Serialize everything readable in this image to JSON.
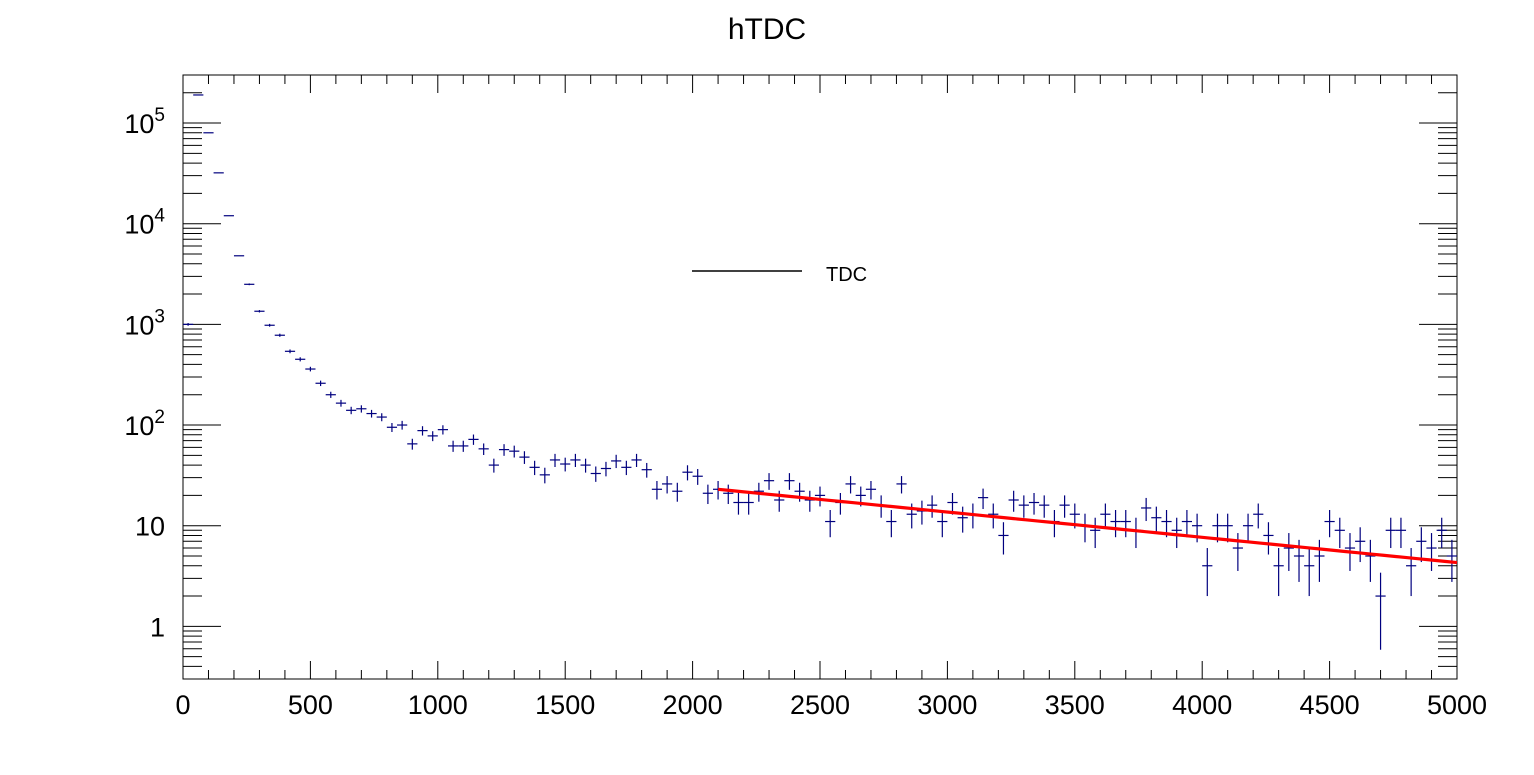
{
  "chart_data": {
    "type": "scatter",
    "title": "hTDC",
    "xlabel": "",
    "ylabel": "",
    "xlim": [
      0,
      5000
    ],
    "ylim": [
      0.3,
      300000
    ],
    "yscale": "log",
    "grid": false,
    "legend": {
      "position": "upper-center",
      "entries": [
        {
          "label": "TDC",
          "color": "#000000"
        }
      ]
    },
    "x_ticks": [
      "0",
      "500",
      "1000",
      "1500",
      "2000",
      "2500",
      "3000",
      "3500",
      "4000",
      "4500",
      "5000"
    ],
    "y_ticks": [
      {
        "value": 1,
        "label": "1"
      },
      {
        "value": 10,
        "label": "10"
      },
      {
        "value": 100,
        "label": "10",
        "exp": "2"
      },
      {
        "value": 1000,
        "label": "10",
        "exp": "3"
      },
      {
        "value": 10000,
        "label": "10",
        "exp": "4"
      },
      {
        "value": 100000,
        "label": "10",
        "exp": "5"
      }
    ],
    "series": [
      {
        "kind": "histogram-points",
        "color": "#00007f",
        "bin_width": 40,
        "x_centers": [
          20,
          60,
          100,
          140,
          180,
          220,
          260,
          300,
          340,
          380,
          420,
          460,
          500,
          540,
          580,
          620,
          660,
          700,
          740,
          780,
          820,
          860,
          900,
          940,
          980,
          1020,
          1060,
          1100,
          1140,
          1180,
          1220,
          1260,
          1300,
          1340,
          1380,
          1420,
          1460,
          1500,
          1540,
          1580,
          1620,
          1660,
          1700,
          1740,
          1780,
          1820,
          1860,
          1900,
          1940,
          1980,
          2020,
          2060,
          2100,
          2140,
          2180,
          2220,
          2260,
          2300,
          2340,
          2380,
          2420,
          2460,
          2500,
          2540,
          2580,
          2620,
          2660,
          2700,
          2740,
          2780,
          2820,
          2860,
          2900,
          2940,
          2980,
          3020,
          3060,
          3100,
          3140,
          3180,
          3220,
          3260,
          3300,
          3340,
          3380,
          3420,
          3460,
          3500,
          3540,
          3580,
          3620,
          3660,
          3700,
          3740,
          3780,
          3820,
          3860,
          3900,
          3940,
          3980,
          4020,
          4060,
          4100,
          4140,
          4180,
          4220,
          4260,
          4300,
          4340,
          4380,
          4420,
          4460,
          4500,
          4540,
          4580,
          4620,
          4660,
          4700,
          4740,
          4780,
          4820,
          4860,
          4900,
          4940,
          4980
        ],
        "values": [
          1000,
          190000,
          80000,
          32000,
          12000,
          4800,
          2500,
          1350,
          980,
          780,
          540,
          450,
          360,
          260,
          200,
          165,
          140,
          145,
          130,
          120,
          95,
          100,
          65,
          88,
          78,
          90,
          62,
          62,
          72,
          58,
          40,
          57,
          55,
          48,
          38,
          32,
          45,
          41,
          45,
          40,
          33,
          37,
          44,
          38,
          45,
          36,
          23,
          26,
          22,
          34,
          31,
          21,
          23,
          21,
          17,
          17,
          22,
          28,
          18,
          28,
          22,
          18,
          20,
          11,
          17,
          26,
          20,
          23,
          16,
          11,
          26,
          13,
          14,
          16,
          11,
          17,
          12,
          13,
          19,
          13,
          8,
          18,
          16,
          17,
          16,
          11,
          16,
          13,
          10,
          9,
          13,
          11,
          11,
          9,
          15,
          12,
          11,
          9,
          11,
          10,
          4,
          10,
          10,
          6,
          10,
          13,
          8,
          4,
          6,
          5,
          4,
          5,
          11,
          9,
          6,
          7,
          5,
          2,
          9,
          9,
          4,
          7,
          6,
          9,
          5
        ]
      },
      {
        "kind": "fit",
        "color": "#ff0000",
        "x_range": [
          2100,
          5000
        ],
        "x": [
          2100,
          5000
        ],
        "y": [
          23,
          4.3
        ]
      }
    ]
  }
}
